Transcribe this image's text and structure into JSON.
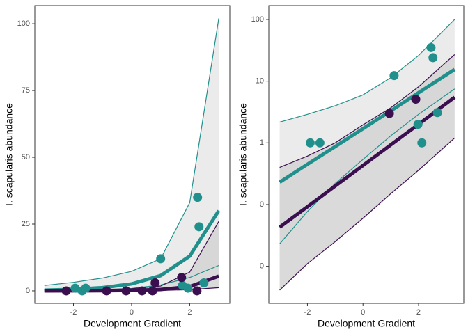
{
  "chart_data": [
    {
      "type": "scatter",
      "log_y": false,
      "xlabel": "Development Gradient",
      "ylabel": "I. scapularis abundance",
      "xlim": [
        -3.33,
        3.38
      ],
      "ylim": [
        -4.7,
        106.8
      ],
      "xticks": [
        -2,
        0,
        2
      ],
      "yticks": [
        0,
        25,
        50,
        75,
        100
      ],
      "lines": [
        {
          "color": "#21908C",
          "band_color": "#e8e8e8",
          "width": 5,
          "x": [
            -3,
            -2,
            -1,
            0,
            1,
            2,
            3
          ],
          "values": [
            0.25,
            0.55,
            1.2,
            2.6,
            5.7,
            13,
            30
          ],
          "upper": [
            2,
            3.2,
            4.8,
            7.3,
            12,
            33,
            102
          ],
          "lower": [
            0.03,
            0.1,
            0.35,
            0.9,
            2.2,
            5,
            9.5
          ]
        },
        {
          "color": "#3B0F4F",
          "band_color": "#d4d4d4",
          "width": 5,
          "x": [
            -3,
            -2,
            -1,
            0,
            1,
            2,
            3
          ],
          "values": [
            0.005,
            0.015,
            0.05,
            0.15,
            0.5,
            1.6,
            5.5
          ],
          "upper": [
            0.4,
            0.45,
            0.55,
            0.8,
            1.8,
            7,
            26
          ],
          "lower": [
            0.0001,
            0.001,
            0.01,
            0.04,
            0.15,
            0.45,
            1.2
          ]
        }
      ],
      "points": [
        {
          "color": "#21908C",
          "x": [
            -1.94,
            -1.58,
            -1.7,
            1.0,
            2.27,
            2.32,
            2.49,
            1.94,
            1.75
          ],
          "values": [
            1,
            1,
            0,
            12,
            35,
            24,
            3,
            1,
            2
          ]
        },
        {
          "color": "#3B0F4F",
          "x": [
            -2.25,
            -0.86,
            -0.19,
            0.36,
            0.72,
            0.81,
            1.72,
            2.25
          ],
          "values": [
            0,
            0,
            0,
            0,
            0,
            3,
            5,
            0
          ]
        }
      ]
    },
    {
      "type": "scatter",
      "log_y": true,
      "xlabel": "Development Gradient",
      "ylabel": "I. scapularis abundance",
      "xlim": [
        -3.39,
        3.63
      ],
      "ylim": [
        0.0025,
        168
      ],
      "xticks": [
        -2,
        0,
        2
      ],
      "yticks": [
        {
          "value": 0.01,
          "label": "0"
        },
        {
          "value": 0.1,
          "label": "0"
        },
        1,
        10,
        100
      ],
      "lines": [
        {
          "color": "#21908C",
          "band_color": "#e8e8e8",
          "width": 5,
          "x": [
            -3,
            -2,
            -1,
            0,
            1,
            2,
            3.3
          ],
          "values": [
            0.23,
            0.45,
            0.87,
            1.7,
            3.3,
            6.5,
            15.5
          ],
          "upper": [
            2.17,
            2.9,
            4.0,
            6.0,
            11.4,
            26,
            100
          ],
          "lower": [
            0.023,
            0.077,
            0.22,
            0.54,
            1.3,
            2.9,
            7.5
          ]
        },
        {
          "color": "#3B0F4F",
          "band_color": "#d4d4d4",
          "width": 5,
          "x": [
            -3,
            -2,
            -1,
            0,
            1,
            2,
            3.3
          ],
          "values": [
            0.043,
            0.092,
            0.2,
            0.43,
            0.93,
            2.0,
            5.5
          ],
          "upper": [
            0.4,
            0.61,
            1.0,
            1.96,
            3.7,
            8.1,
            27
          ],
          "lower": [
            0.0041,
            0.011,
            0.025,
            0.06,
            0.15,
            0.36,
            1.2
          ]
        }
      ],
      "points": [
        {
          "color": "#21908C",
          "x": [
            -1.9,
            -1.55,
            1.12,
            2.45,
            2.52,
            2.68,
            1.98,
            2.12
          ],
          "values": [
            1,
            1,
            12.3,
            35,
            24,
            3.1,
            2,
            1
          ]
        },
        {
          "color": "#3B0F4F",
          "x": [
            0.95,
            1.9
          ],
          "values": [
            3,
            5.1
          ]
        }
      ]
    }
  ]
}
